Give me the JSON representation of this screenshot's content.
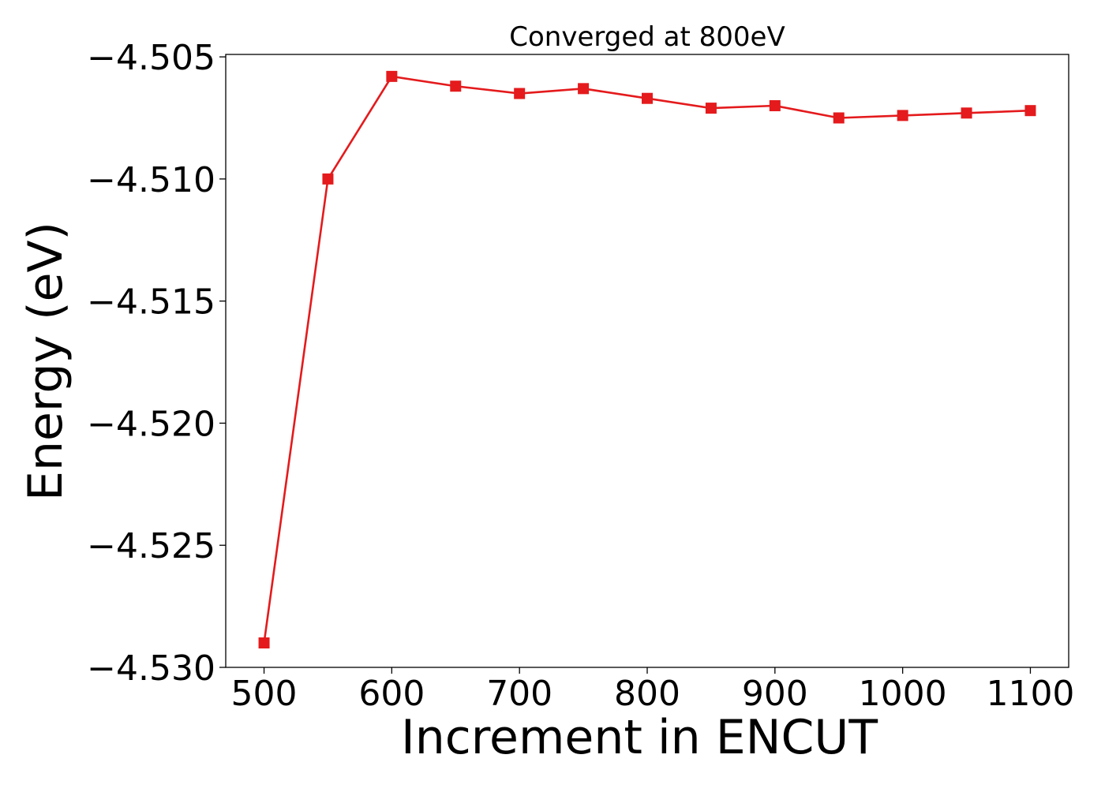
{
  "chart_data": {
    "type": "line",
    "title": "Converged at 800eV",
    "xlabel": "Increment in ENCUT",
    "ylabel": "Energy (eV)",
    "x": [
      500,
      550,
      600,
      650,
      700,
      750,
      800,
      850,
      900,
      950,
      1000,
      1050,
      1100
    ],
    "series": [
      {
        "values": [
          -4.529,
          -4.51,
          -4.5058,
          -4.5062,
          -4.5065,
          -4.5063,
          -4.5067,
          -4.5071,
          -4.507,
          -4.5075,
          -4.5074,
          -4.5073,
          -4.5072
        ],
        "color": "#e41a1c",
        "marker": "square"
      }
    ],
    "xlim": [
      470,
      1130
    ],
    "ylim": [
      -4.53,
      -4.5049
    ],
    "xticks": [
      500,
      600,
      700,
      800,
      900,
      1000,
      1100
    ],
    "xtick_labels": [
      "500",
      "600",
      "700",
      "800",
      "900",
      "1000",
      "1100"
    ],
    "yticks": [
      -4.53,
      -4.525,
      -4.52,
      -4.515,
      -4.51,
      -4.505
    ],
    "ytick_labels": [
      "−4.530",
      "−4.525",
      "−4.520",
      "−4.515",
      "−4.510",
      "−4.505"
    ],
    "grid": false,
    "legend": "none"
  }
}
